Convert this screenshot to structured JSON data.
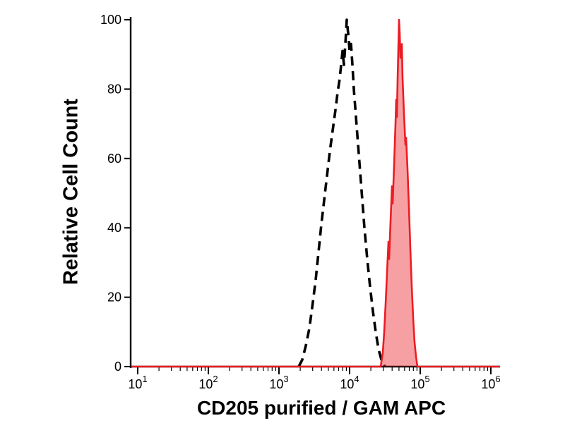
{
  "chart_data": {
    "type": "area",
    "subtype": "flow-cytometry-histogram-overlay",
    "title": "",
    "xlabel": "CD205 purified / GAM APC",
    "ylabel": "Relative Cell Count",
    "x_scale": "log10",
    "xlim_log10": [
      1,
      6
    ],
    "ylim": [
      0,
      100
    ],
    "grid": false,
    "legend": "none",
    "background": "#ffffff",
    "axis_color": "#000000",
    "y_ticks": [
      0,
      20,
      40,
      60,
      80,
      100
    ],
    "x_ticks": [
      {
        "log": 1,
        "base": "10",
        "exp": "1"
      },
      {
        "log": 2,
        "base": "10",
        "exp": "2"
      },
      {
        "log": 3,
        "base": "10",
        "exp": "3"
      },
      {
        "log": 4,
        "base": "10",
        "exp": "4"
      },
      {
        "log": 5,
        "base": "10",
        "exp": "5"
      },
      {
        "log": 6,
        "base": "10",
        "exp": "6"
      }
    ],
    "series": [
      {
        "id": "dashed-black-histogram",
        "line_style": "dashed",
        "stroke": "#000000",
        "fill": "none",
        "peak_log10x": 3.96,
        "peak_y": 100,
        "points_log10x_y": [
          [
            3.28,
            0
          ],
          [
            3.33,
            2
          ],
          [
            3.38,
            6
          ],
          [
            3.43,
            11
          ],
          [
            3.47,
            17
          ],
          [
            3.52,
            25
          ],
          [
            3.56,
            33
          ],
          [
            3.6,
            41
          ],
          [
            3.64,
            48
          ],
          [
            3.68,
            55
          ],
          [
            3.72,
            62
          ],
          [
            3.76,
            68
          ],
          [
            3.8,
            74
          ],
          [
            3.83,
            79
          ],
          [
            3.86,
            83
          ],
          [
            3.88,
            87
          ],
          [
            3.9,
            91
          ],
          [
            3.92,
            87
          ],
          [
            3.94,
            93
          ],
          [
            3.96,
            100
          ],
          [
            3.98,
            96
          ],
          [
            4.0,
            91
          ],
          [
            4.02,
            93
          ],
          [
            4.04,
            87
          ],
          [
            4.06,
            80
          ],
          [
            4.09,
            72
          ],
          [
            4.12,
            64
          ],
          [
            4.15,
            56
          ],
          [
            4.18,
            48
          ],
          [
            4.21,
            40
          ],
          [
            4.25,
            31
          ],
          [
            4.29,
            23
          ],
          [
            4.33,
            16
          ],
          [
            4.37,
            10
          ],
          [
            4.41,
            5
          ],
          [
            4.45,
            2
          ],
          [
            4.5,
            0
          ]
        ]
      },
      {
        "id": "red-filled-histogram",
        "line_style": "solid",
        "stroke": "#ec1c24",
        "fill": "rgba(236,28,36,0.42)",
        "peak_log10x": 4.7,
        "peak_y": 100,
        "baseline_full_width": true,
        "points_log10x_y": [
          [
            4.44,
            0
          ],
          [
            4.47,
            4
          ],
          [
            4.49,
            10
          ],
          [
            4.51,
            18
          ],
          [
            4.53,
            27
          ],
          [
            4.55,
            36
          ],
          [
            4.56,
            31
          ],
          [
            4.58,
            42
          ],
          [
            4.6,
            52
          ],
          [
            4.61,
            47
          ],
          [
            4.63,
            58
          ],
          [
            4.65,
            70
          ],
          [
            4.66,
            77
          ],
          [
            4.67,
            72
          ],
          [
            4.68,
            83
          ],
          [
            4.7,
            100
          ],
          [
            4.71,
            96
          ],
          [
            4.72,
            89
          ],
          [
            4.74,
            93
          ],
          [
            4.75,
            83
          ],
          [
            4.77,
            73
          ],
          [
            4.79,
            64
          ],
          [
            4.8,
            66
          ],
          [
            4.82,
            57
          ],
          [
            4.84,
            46
          ],
          [
            4.86,
            34
          ],
          [
            4.88,
            23
          ],
          [
            4.9,
            14
          ],
          [
            4.92,
            7
          ],
          [
            4.94,
            3
          ],
          [
            4.96,
            0
          ]
        ]
      }
    ]
  }
}
